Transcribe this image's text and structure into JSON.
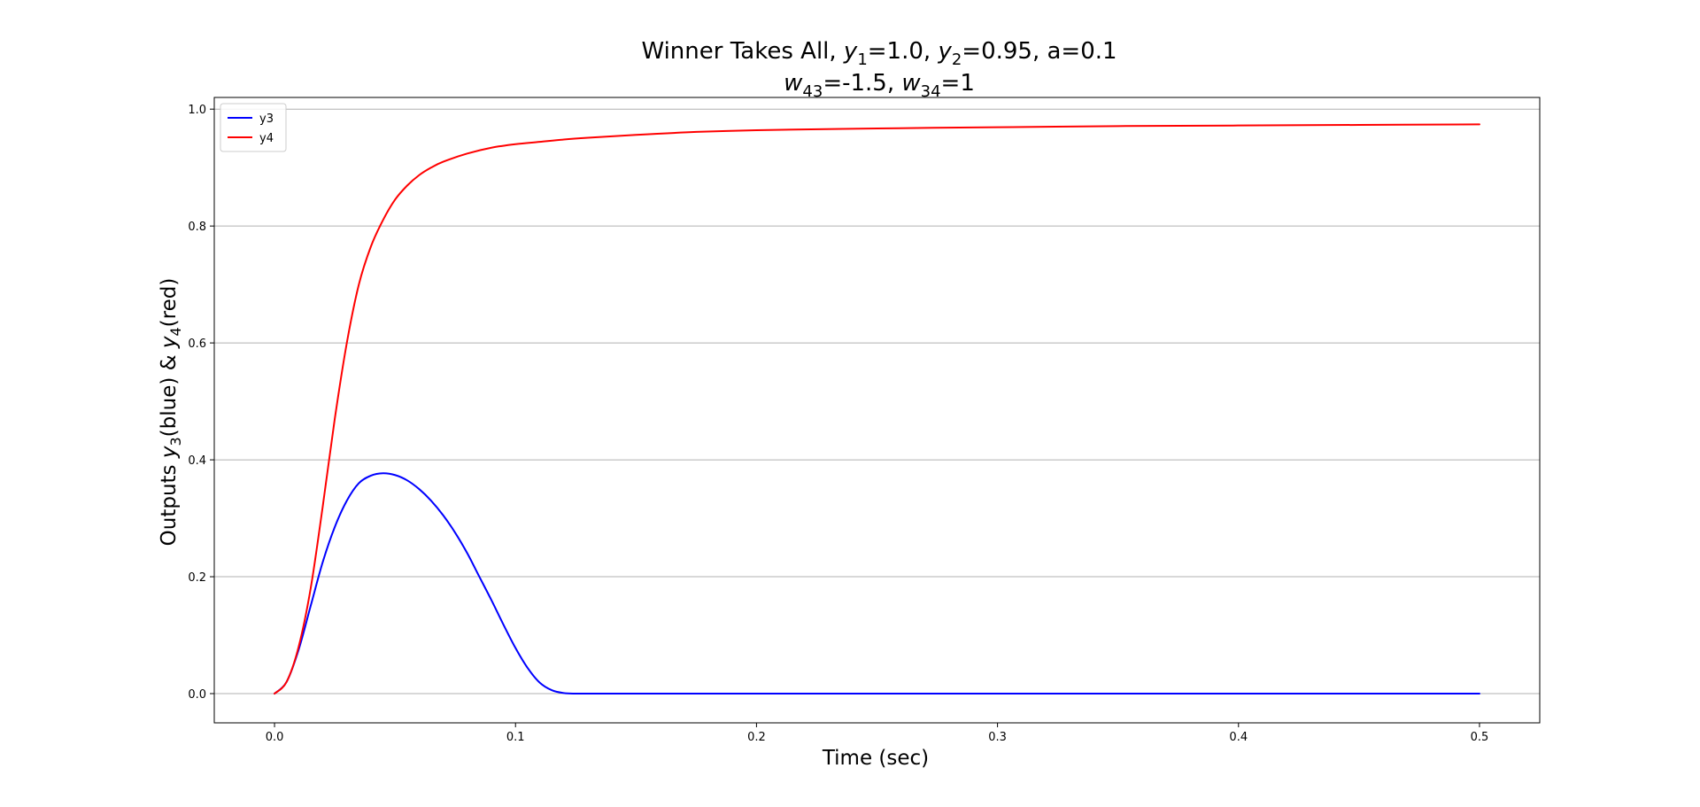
{
  "chart_data": {
    "type": "line",
    "title_line1": {
      "prefix": "Winner Takes All, ",
      "v1": "y",
      "s1": "1",
      "t1": "=1.0, ",
      "v2": "y",
      "s2": "2",
      "t2": "=0.95, a=0.1"
    },
    "title_line2": {
      "v1": "w",
      "s1": "43",
      "t1": "=-1.5, ",
      "v2": "w",
      "s2": "34",
      "t2": "=1"
    },
    "xlabel": "Time (sec)",
    "ylabel": {
      "p1": "Outputs ",
      "v1": "y",
      "s1": "3",
      "p2": "(blue) & ",
      "v2": "y",
      "s2": "4",
      "p3": "(red)"
    },
    "xlim": [
      -0.025,
      0.525
    ],
    "ylim": [
      -0.05,
      1.02
    ],
    "x_ticks": [
      0.0,
      0.1,
      0.2,
      0.3,
      0.4,
      0.5
    ],
    "x_tick_labels": [
      "0.0",
      "0.1",
      "0.2",
      "0.3",
      "0.4",
      "0.5"
    ],
    "y_ticks": [
      0.0,
      0.2,
      0.4,
      0.6,
      0.8,
      1.0
    ],
    "y_tick_labels": [
      "0.0",
      "0.2",
      "0.4",
      "0.6",
      "0.8",
      "1.0"
    ],
    "grid": "y-major",
    "legend_position": "top-left",
    "series": [
      {
        "name": "y3",
        "color": "#0000ff",
        "x": [
          0.0,
          0.005,
          0.01,
          0.015,
          0.02,
          0.025,
          0.03,
          0.035,
          0.04,
          0.045,
          0.05,
          0.055,
          0.06,
          0.065,
          0.07,
          0.075,
          0.08,
          0.085,
          0.09,
          0.095,
          0.1,
          0.105,
          0.11,
          0.115,
          0.12,
          0.125,
          0.13,
          0.15,
          0.2,
          0.3,
          0.4,
          0.5
        ],
        "y": [
          0.0,
          0.02,
          0.075,
          0.15,
          0.225,
          0.285,
          0.33,
          0.36,
          0.373,
          0.377,
          0.374,
          0.365,
          0.35,
          0.33,
          0.305,
          0.275,
          0.24,
          0.2,
          0.16,
          0.118,
          0.078,
          0.044,
          0.019,
          0.006,
          0.001,
          0.0,
          0.0,
          0.0,
          0.0,
          0.0,
          0.0,
          0.0
        ]
      },
      {
        "name": "y4",
        "color": "#ff0000",
        "x": [
          0.0,
          0.005,
          0.01,
          0.015,
          0.02,
          0.025,
          0.03,
          0.035,
          0.04,
          0.045,
          0.05,
          0.055,
          0.06,
          0.065,
          0.07,
          0.08,
          0.09,
          0.1,
          0.11,
          0.12,
          0.13,
          0.15,
          0.175,
          0.2,
          0.25,
          0.3,
          0.35,
          0.4,
          0.45,
          0.5
        ],
        "y": [
          0.0,
          0.02,
          0.08,
          0.18,
          0.32,
          0.47,
          0.6,
          0.7,
          0.765,
          0.81,
          0.845,
          0.869,
          0.887,
          0.9,
          0.91,
          0.924,
          0.934,
          0.94,
          0.944,
          0.948,
          0.951,
          0.956,
          0.961,
          0.964,
          0.967,
          0.969,
          0.971,
          0.972,
          0.973,
          0.974
        ]
      }
    ]
  }
}
